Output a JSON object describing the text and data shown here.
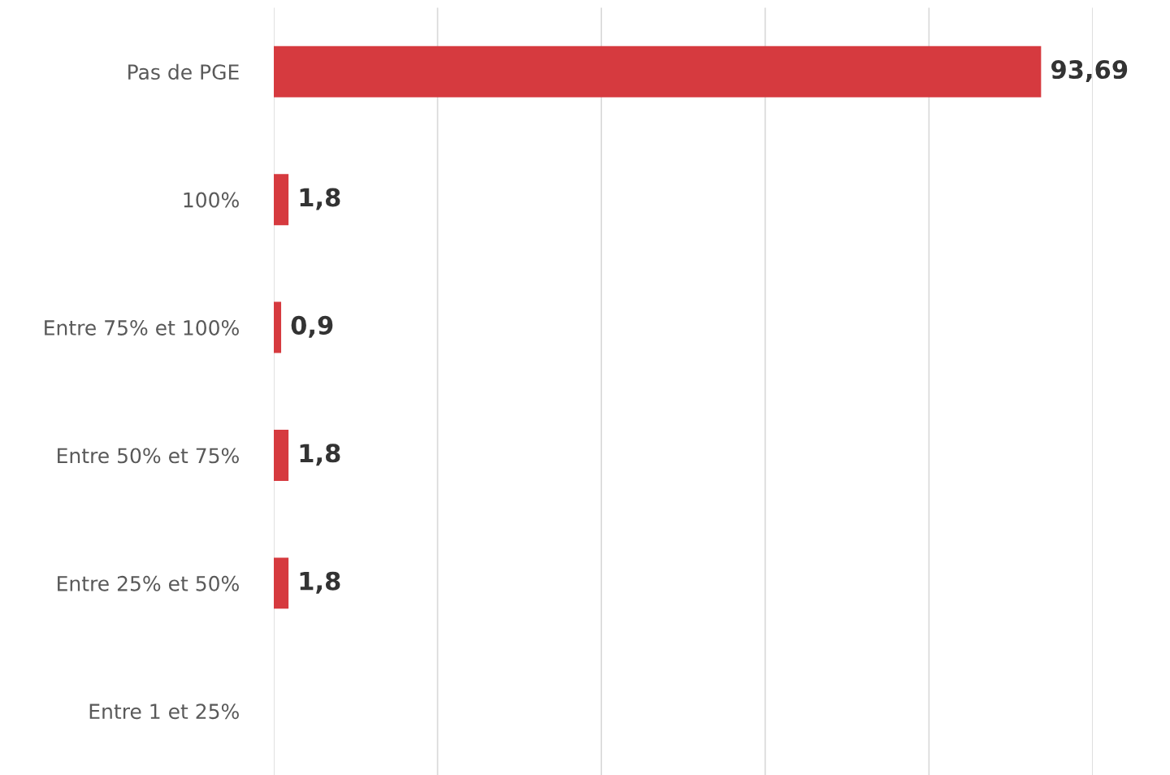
{
  "chart_data": {
    "type": "bar",
    "orientation": "horizontal",
    "categories": [
      "Pas de PGE",
      "100%",
      "Entre 75% et 100%",
      "Entre 50% et 75%",
      "Entre 25% et 50%",
      "Entre 1 et 25%"
    ],
    "values": [
      93.69,
      1.8,
      0.9,
      1.8,
      1.8,
      null
    ],
    "value_labels": [
      "93,69",
      "1,8",
      "0,9",
      "1,8",
      "1,8",
      null
    ],
    "color": "#d63a3f",
    "xlim": [
      0,
      100
    ],
    "xticks": [
      {
        "value": 0,
        "label": null
      },
      {
        "value": 20,
        "label": null
      },
      {
        "value": 40,
        "label": null
      },
      {
        "value": 60,
        "label": null
      },
      {
        "value": 80,
        "label": null
      },
      {
        "value": 100,
        "label": null
      }
    ],
    "tick_labels": "y",
    "grid": "x",
    "legend": false
  }
}
